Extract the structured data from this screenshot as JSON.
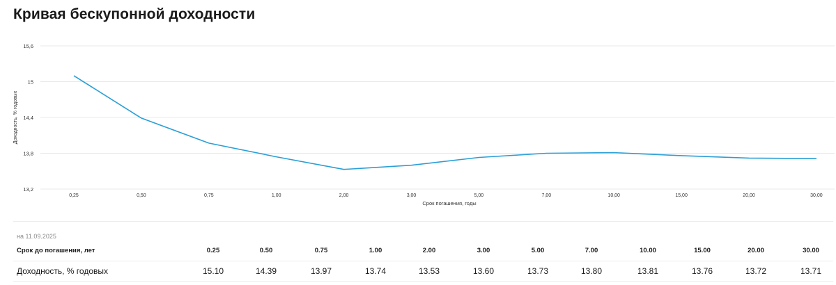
{
  "title": "Кривая бесkупонной доходности",
  "chart_data": {
    "type": "line",
    "title": "Кривая бескупонной доходности",
    "xlabel": "Срок погашения, годы",
    "ylabel": "Доходность, % годовых",
    "categories": [
      "0,25",
      "0,50",
      "0,75",
      "1,00",
      "2,00",
      "3,00",
      "5,00",
      "7,00",
      "10,00",
      "15,00",
      "20,00",
      "30,00"
    ],
    "series": [
      {
        "values": [
          15.1,
          14.39,
          13.97,
          13.74,
          13.53,
          13.6,
          13.73,
          13.8,
          13.81,
          13.76,
          13.72,
          13.71
        ]
      }
    ],
    "ylim": [
      13.2,
      15.6
    ],
    "yticks": [
      "13,2",
      "13,8",
      "14,4",
      "15",
      "15,6"
    ],
    "grid": true,
    "line_color": "#2a9fd6"
  },
  "as_of": "на 11.09.2025",
  "table": {
    "header_label": "Срок до погашения, лет",
    "row_label": "Доходность, % годовых",
    "terms": [
      "0.25",
      "0.50",
      "0.75",
      "1.00",
      "2.00",
      "3.00",
      "5.00",
      "7.00",
      "10.00",
      "15.00",
      "20.00",
      "30.00"
    ],
    "yields": [
      "15.10",
      "14.39",
      "13.97",
      "13.74",
      "13.53",
      "13.60",
      "13.73",
      "13.80",
      "13.81",
      "13.76",
      "13.72",
      "13.71"
    ]
  }
}
